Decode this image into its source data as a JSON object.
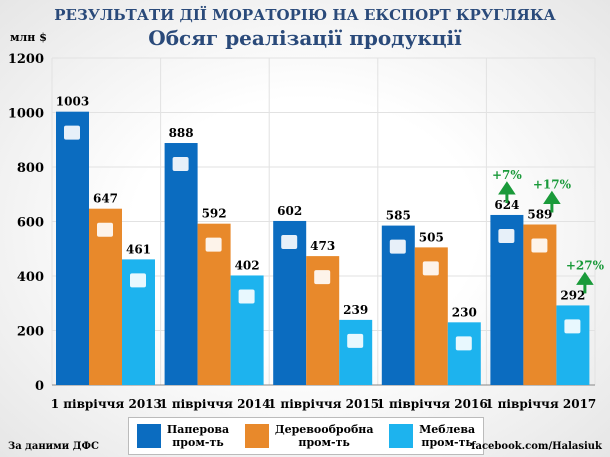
{
  "chart_data": {
    "type": "bar",
    "title": "РЕЗУЛЬТАТИ ДІЇ МОРАТОРІЮ НА ЕКСПОРТ КРУГЛЯКА",
    "subtitle": "Обсяг реалізації продукції",
    "ylabel": "млн $",
    "ylim": [
      0,
      1200
    ],
    "yticks": [
      "0",
      "200",
      "400",
      "600",
      "800",
      "1000",
      "1200"
    ],
    "categories": [
      "1 півріччя 2013",
      "1 півріччя 2014",
      "1 півріччя 2015",
      "1 півріччя 2016",
      "1 півріччя 2017"
    ],
    "series": [
      {
        "name": "Паперова пром-ть",
        "line1": "Паперова",
        "line2": "пром-ть",
        "color": "#0b6cc0",
        "icon": "book-icon",
        "values": [
          1003,
          888,
          602,
          585,
          624
        ]
      },
      {
        "name": "Деревообробна пром-ть",
        "line1": "Деревообробна",
        "line2": "пром-ть",
        "color": "#e8892b",
        "icon": "saw-icon",
        "values": [
          647,
          592,
          473,
          505,
          589
        ]
      },
      {
        "name": "Меблева пром-ть",
        "line1": "Меблева",
        "line2": "пром-ть",
        "color": "#1db3ee",
        "icon": "table-icon",
        "values": [
          461,
          402,
          239,
          230,
          292
        ]
      }
    ],
    "annotations": [
      "+7%",
      "+17%",
      "+27%"
    ],
    "grid": true
  },
  "footer": {
    "source": "За даними ДФС",
    "link": "facebook.com/Halasiuk"
  }
}
